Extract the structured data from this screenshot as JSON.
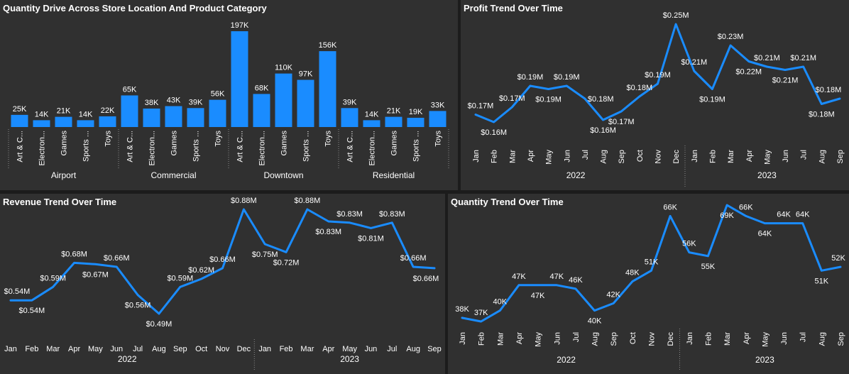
{
  "chart_data": [
    {
      "type": "bar",
      "title": "Quantity Drive Across Store Location And Product Category",
      "color": "#1a8cff",
      "groups": [
        "Airport",
        "Commercial",
        "Downtown",
        "Residential"
      ],
      "categories": [
        "Art & C...",
        "Electron...",
        "Games",
        "Sports ...",
        "Toys"
      ],
      "values": [
        [
          25,
          14,
          21,
          14,
          22
        ],
        [
          65,
          38,
          43,
          39,
          56
        ],
        [
          197,
          68,
          110,
          97,
          156
        ],
        [
          39,
          14,
          21,
          19,
          33
        ]
      ],
      "labels": [
        [
          "25K",
          "14K",
          "21K",
          "14K",
          "22K"
        ],
        [
          "65K",
          "38K",
          "43K",
          "39K",
          "56K"
        ],
        [
          "197K",
          "68K",
          "110K",
          "97K",
          "156K"
        ],
        [
          "39K",
          "14K",
          "21K",
          "19K",
          "33K"
        ]
      ],
      "unit": "K"
    },
    {
      "type": "line",
      "title": "Profit Trend Over Time",
      "color": "#1a8cff",
      "x": [
        "Jan",
        "Feb",
        "Mar",
        "Apr",
        "May",
        "Jun",
        "Jul",
        "Aug",
        "Sep",
        "Oct",
        "Nov",
        "Dec",
        "Jan",
        "Feb",
        "Mar",
        "Apr",
        "May",
        "Jun",
        "Jul",
        "Aug",
        "Sep"
      ],
      "years": [
        {
          "label": "2022",
          "count": 12
        },
        {
          "label": "2023",
          "count": 9
        }
      ],
      "values": [
        0.165,
        0.158,
        0.172,
        0.192,
        0.189,
        0.192,
        0.18,
        0.16,
        0.168,
        0.182,
        0.194,
        0.25,
        0.206,
        0.189,
        0.23,
        0.215,
        0.21,
        0.207,
        0.21,
        0.175,
        0.18
      ],
      "labels": [
        "$0.17M",
        "$0.16M",
        "$0.17M",
        "$0.19M",
        "$0.19M",
        "$0.19M",
        "$0.18M",
        "$0.16M",
        "$0.17M",
        "$0.18M",
        "$0.19M",
        "$0.25M",
        "$0.21M",
        "$0.19M",
        "$0.23M",
        "$0.22M",
        "$0.21M",
        "$0.21M",
        "$0.21M",
        "$0.18M",
        "$0.18M"
      ],
      "label_pos": [
        "above",
        "below",
        "above",
        "above",
        "below",
        "above",
        "right",
        "below",
        "below",
        "above",
        "above",
        "above",
        "above",
        "below",
        "above",
        "below",
        "above",
        "below",
        "above",
        "below",
        "above"
      ]
    },
    {
      "type": "line",
      "title": "Revenue Trend Over Time",
      "color": "#1a8cff",
      "x": [
        "Jan",
        "Feb",
        "Mar",
        "Apr",
        "May",
        "Jun",
        "Jul",
        "Aug",
        "Sep",
        "Oct",
        "Nov",
        "Dec",
        "Jan",
        "Feb",
        "Mar",
        "Apr",
        "May",
        "Jun",
        "Jul",
        "Aug",
        "Sep"
      ],
      "years": [
        {
          "label": "2022",
          "count": 12
        },
        {
          "label": "2023",
          "count": 9
        }
      ],
      "values": [
        0.54,
        0.54,
        0.59,
        0.68,
        0.675,
        0.665,
        0.56,
        0.49,
        0.59,
        0.62,
        0.66,
        0.88,
        0.75,
        0.72,
        0.88,
        0.835,
        0.83,
        0.81,
        0.83,
        0.665,
        0.66
      ],
      "labels": [
        "$0.54M",
        "$0.54M",
        "$0.59M",
        "$0.68M",
        "$0.67M",
        "$0.66M",
        "$0.56M",
        "$0.49M",
        "$0.59M",
        "$0.62M",
        "$0.66M",
        "$0.88M",
        "$0.75M",
        "$0.72M",
        "$0.88M",
        "$0.83M",
        "$0.83M",
        "$0.81M",
        "$0.83M",
        "$0.66M",
        "$0.66M"
      ],
      "label_pos": [
        "above",
        "below",
        "above",
        "above",
        "below",
        "above",
        "below",
        "below",
        "above",
        "above",
        "above",
        "above",
        "below",
        "below",
        "above",
        "below",
        "above",
        "below",
        "above",
        "above",
        "below"
      ]
    },
    {
      "type": "line",
      "title": "Quantity Trend Over Time",
      "color": "#1a8cff",
      "x": [
        "Jan",
        "Feb",
        "Mar",
        "Apr",
        "May",
        "Jun",
        "Jul",
        "Aug",
        "Sep",
        "Oct",
        "Nov",
        "Dec",
        "Jan",
        "Feb",
        "Mar",
        "Apr",
        "May",
        "Jun",
        "Jul",
        "Aug",
        "Sep"
      ],
      "years": [
        {
          "label": "2022",
          "count": 12
        },
        {
          "label": "2023",
          "count": 9
        }
      ],
      "values": [
        38,
        37,
        40,
        47,
        47,
        47,
        46,
        40,
        42,
        48,
        51,
        66,
        56,
        55,
        69,
        66,
        64,
        64,
        64,
        51,
        52
      ],
      "labels": [
        "38K",
        "37K",
        "40K",
        "47K",
        "47K",
        "47K",
        "46K",
        "40K",
        "42K",
        "48K",
        "51K",
        "66K",
        "56K",
        "55K",
        "69K",
        "66K",
        "64K",
        "64K",
        "64K",
        "51K",
        "52K"
      ],
      "label_pos": [
        "above",
        "above",
        "above",
        "above",
        "below",
        "above",
        "above",
        "below",
        "above",
        "above",
        "above",
        "above",
        "above",
        "below",
        "below",
        "above",
        "below",
        "above",
        "above",
        "below",
        "above"
      ]
    }
  ]
}
